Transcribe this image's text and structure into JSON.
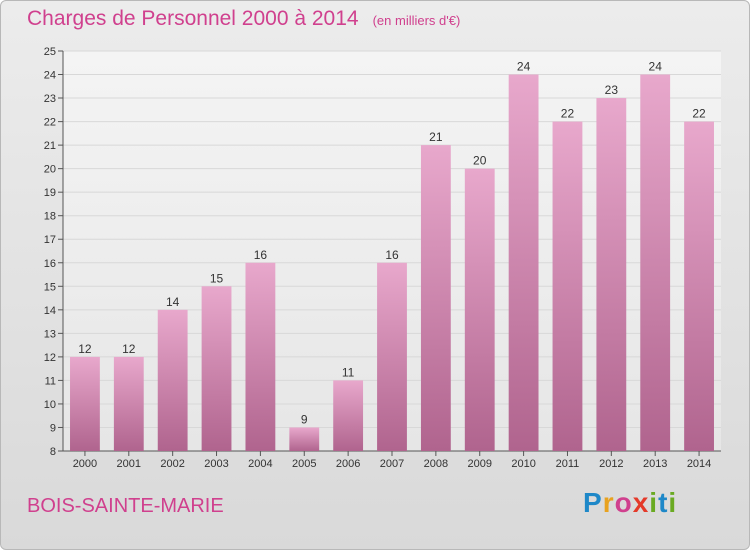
{
  "title": "Charges de Personnel 2000 à 2014",
  "unit": "(en milliers d'€)",
  "place": "BOIS-SAINTE-MARIE",
  "logo_text": "Proxiti",
  "colors": {
    "accent": "#d0408e",
    "bar_top": "#e8a8cc",
    "bar_bottom": "#b0648e",
    "grid": "#d8d8d8"
  },
  "chart_data": {
    "type": "bar",
    "title": "Charges de Personnel 2000 à 2014",
    "subtitle": "(en milliers d'€)",
    "xlabel": "",
    "ylabel": "",
    "categories": [
      "2000",
      "2001",
      "2002",
      "2003",
      "2004",
      "2005",
      "2006",
      "2007",
      "2008",
      "2009",
      "2010",
      "2011",
      "2012",
      "2013",
      "2014"
    ],
    "values": [
      12,
      12,
      14,
      15,
      16,
      9,
      11,
      16,
      21,
      20,
      24,
      22,
      23,
      24,
      22
    ],
    "ylim": [
      8,
      25
    ],
    "yticks": [
      8,
      9,
      10,
      11,
      12,
      13,
      14,
      15,
      16,
      17,
      18,
      19,
      20,
      21,
      22,
      23,
      24,
      25
    ],
    "grid": true,
    "legend": "none"
  }
}
